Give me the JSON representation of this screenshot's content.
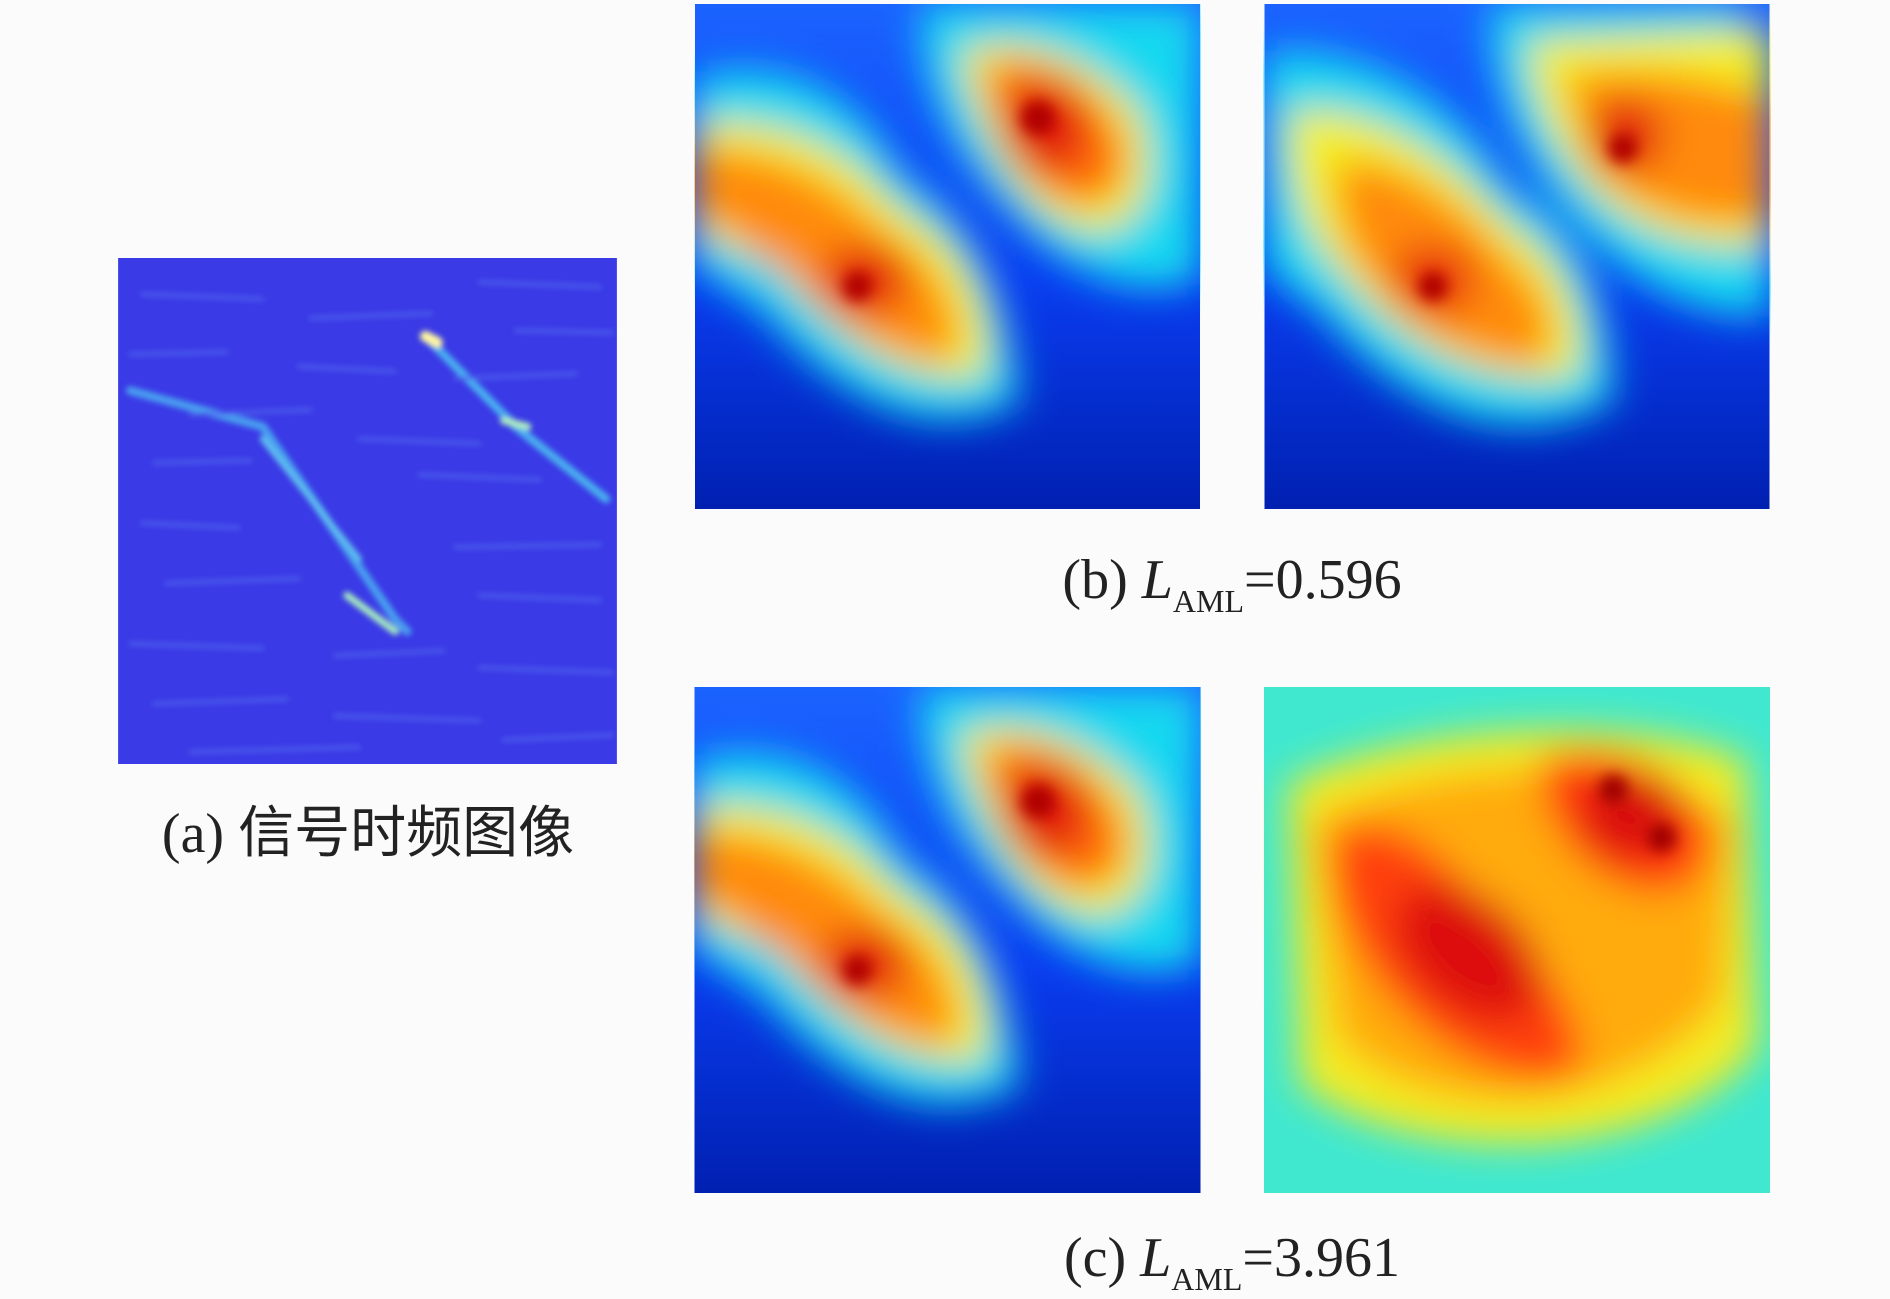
{
  "figure": {
    "panels": [
      {
        "label": "(a)",
        "caption": "信号时频图像"
      },
      {
        "label": "(b)",
        "symbol": "L",
        "subscript": "AML",
        "relation": "=",
        "value": 0.596
      },
      {
        "label": "(c)",
        "symbol": "L",
        "subscript": "AML",
        "relation": "=",
        "value": 3.961
      }
    ]
  }
}
